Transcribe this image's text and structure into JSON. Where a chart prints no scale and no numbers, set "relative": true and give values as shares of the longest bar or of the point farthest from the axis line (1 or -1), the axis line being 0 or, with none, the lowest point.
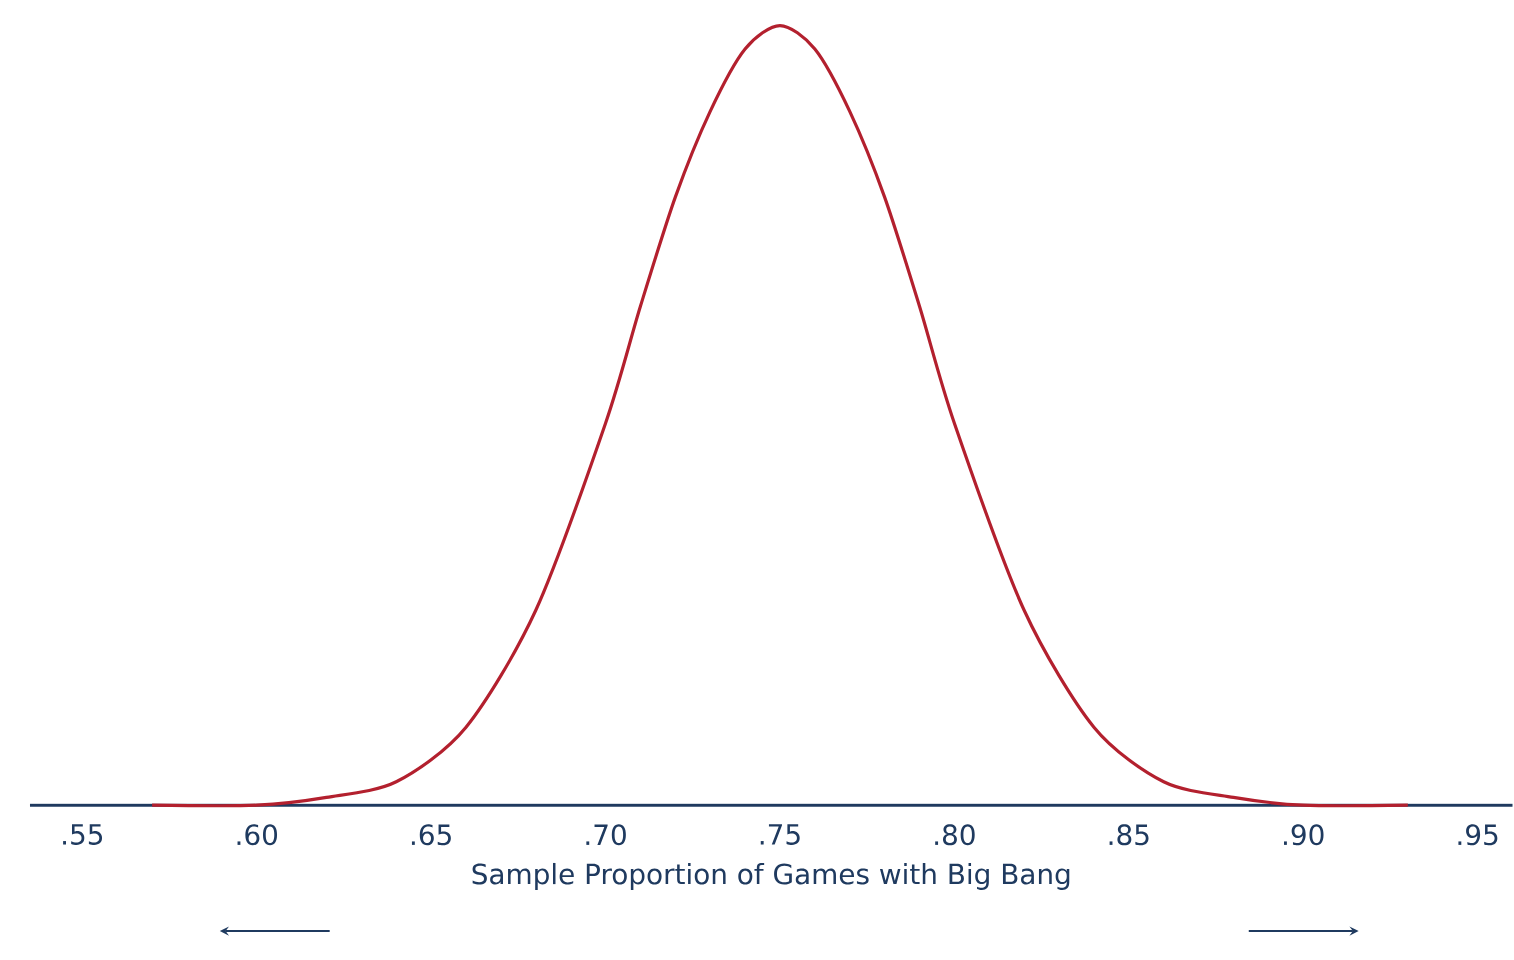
{
  "chart_data": {
    "type": "line",
    "relative": true,
    "xlabel": "Sample Proportion of Games with Big Bang",
    "xlim": [
      0.535,
      0.96
    ],
    "xticks": [
      {
        "value": 0.55,
        "label": ".55"
      },
      {
        "value": 0.6,
        "label": ".60"
      },
      {
        "value": 0.65,
        "label": ".65"
      },
      {
        "value": 0.7,
        "label": ".70"
      },
      {
        "value": 0.75,
        "label": ".75"
      },
      {
        "value": 0.8,
        "label": ".80"
      },
      {
        "value": 0.85,
        "label": ".85"
      },
      {
        "value": 0.9,
        "label": ".90"
      },
      {
        "value": 0.95,
        "label": ".95"
      }
    ],
    "series": [
      {
        "color": "#b3202e",
        "x": [
          0.57,
          0.6,
          0.62,
          0.64,
          0.66,
          0.68,
          0.7,
          0.71,
          0.72,
          0.73,
          0.74,
          0.75,
          0.76,
          0.77,
          0.78,
          0.79,
          0.8,
          0.82,
          0.84,
          0.86,
          0.88,
          0.9,
          0.93
        ],
        "values": [
          0,
          0,
          0.01,
          0.03,
          0.1,
          0.25,
          0.49,
          0.64,
          0.78,
          0.89,
          0.97,
          1,
          0.97,
          0.89,
          0.78,
          0.64,
          0.49,
          0.25,
          0.1,
          0.03,
          0.01,
          0,
          0
        ]
      }
    ],
    "grid": false,
    "marker": "none",
    "line_style": "solid"
  }
}
